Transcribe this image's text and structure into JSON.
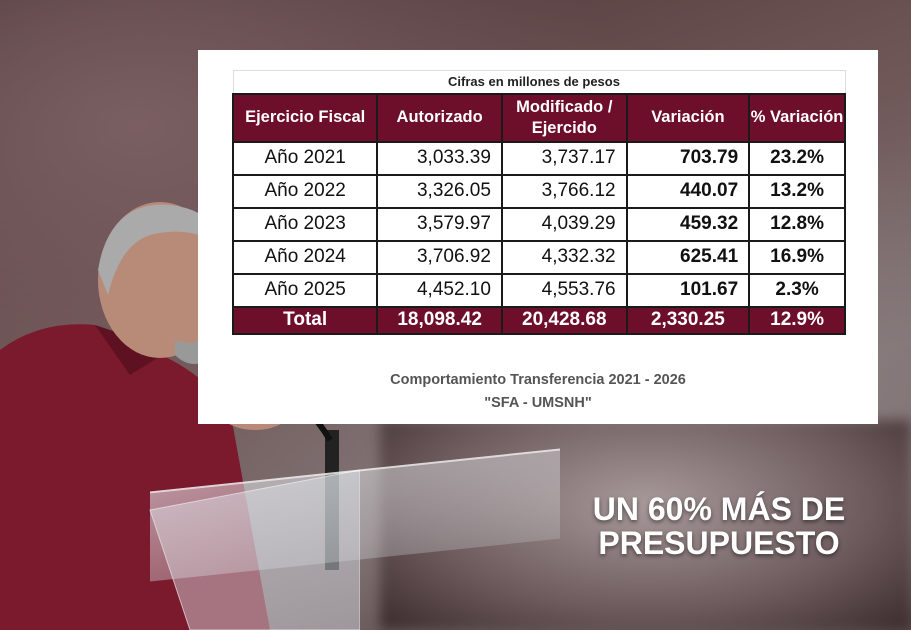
{
  "table": {
    "caption": "Cifras en millones de pesos",
    "headers": [
      "Ejercicio Fiscal",
      "Autorizado",
      "Modificado / Ejercido",
      "Variación",
      "% Variación"
    ],
    "rows": [
      [
        "Año 2021",
        "3,033.39",
        "3,737.17",
        "703.79",
        "23.2%"
      ],
      [
        "Año 2022",
        "3,326.05",
        "3,766.12",
        "440.07",
        "13.2%"
      ],
      [
        "Año 2023",
        "3,579.97",
        "4,039.29",
        "459.32",
        "12.8%"
      ],
      [
        "Año 2024",
        "3,706.92",
        "4,332.32",
        "625.41",
        "16.9%"
      ],
      [
        "Año 2025",
        "4,452.10",
        "4,553.76",
        "101.67",
        "2.3%"
      ]
    ],
    "total": [
      "Total",
      "18,098.42",
      "20,428.68",
      "2,330.25",
      "12.9%"
    ]
  },
  "subtitle": "Comportamiento Transferencia 2021 - 2026",
  "subtitle2": "\"SFA - UMSNH\"",
  "headline": {
    "line1": "UN 60% MÁS DE",
    "line2": "PRESUPUESTO"
  },
  "colors": {
    "header": "#6d0f2a",
    "shirt": "#7a1a2c"
  }
}
